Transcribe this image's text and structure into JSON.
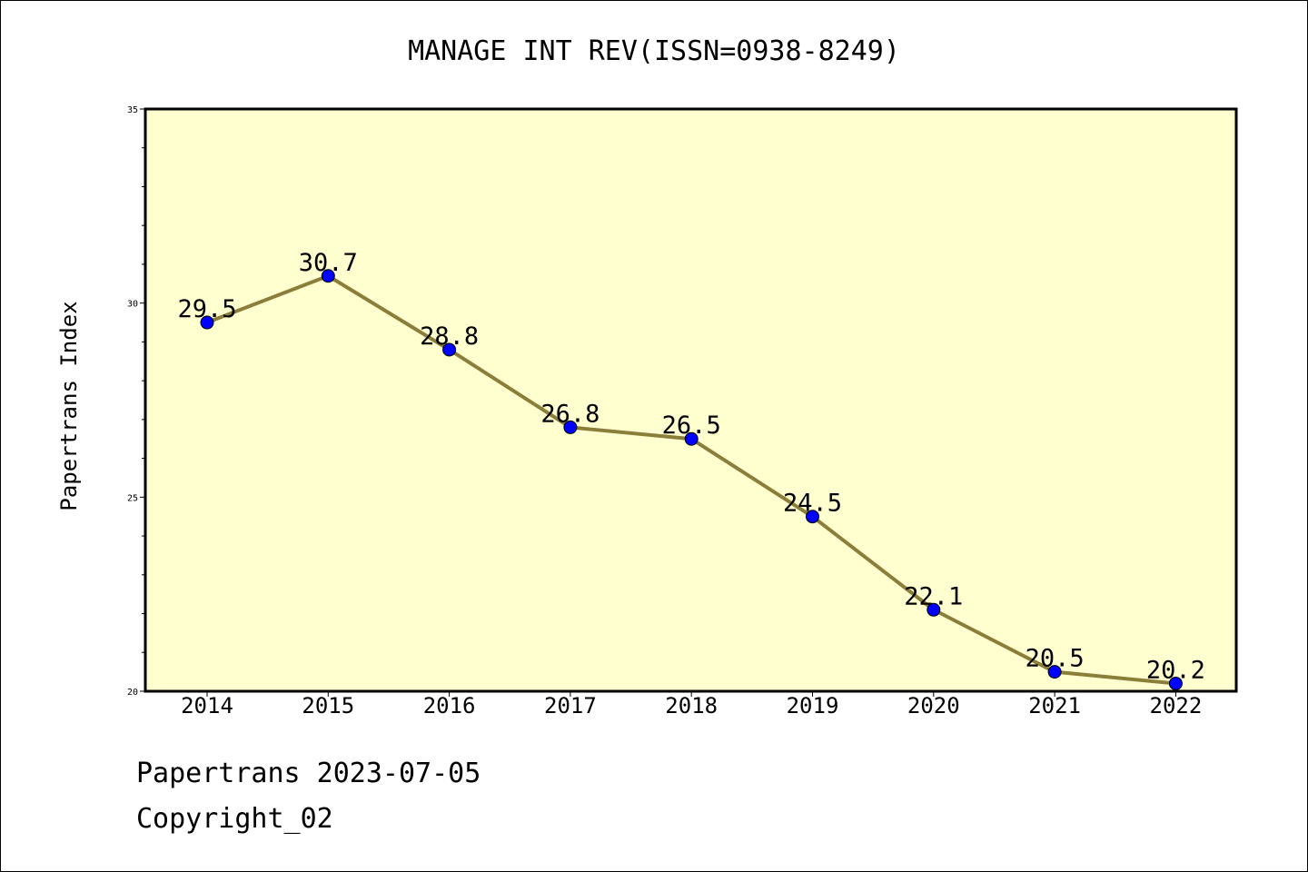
{
  "chart_data": {
    "type": "line",
    "title": "MANAGE INT REV(ISSN=0938-8249)",
    "xlabel": "",
    "ylabel": "Papertrans Index",
    "categories": [
      "2014",
      "2015",
      "2016",
      "2017",
      "2018",
      "2019",
      "2020",
      "2021",
      "2022"
    ],
    "series": [
      {
        "values": [
          29.5,
          30.7,
          28.8,
          26.8,
          26.5,
          24.5,
          22.1,
          20.5,
          20.2
        ]
      }
    ],
    "data_labels": [
      "29.5",
      "30.7",
      "28.8",
      "26.8",
      "26.5",
      "24.5",
      "22.1",
      "20.5",
      "20.2"
    ],
    "ylim": [
      20,
      35
    ],
    "y_ticks": [
      "20",
      "25",
      "30",
      "35"
    ],
    "grid": false,
    "colors": {
      "plot_bg": "#ffffd0",
      "line": "#8b7d3a",
      "marker": "#0000ff"
    }
  },
  "footer": {
    "date_line": "Papertrans 2023-07-05",
    "copyright": "Copyright_02"
  }
}
